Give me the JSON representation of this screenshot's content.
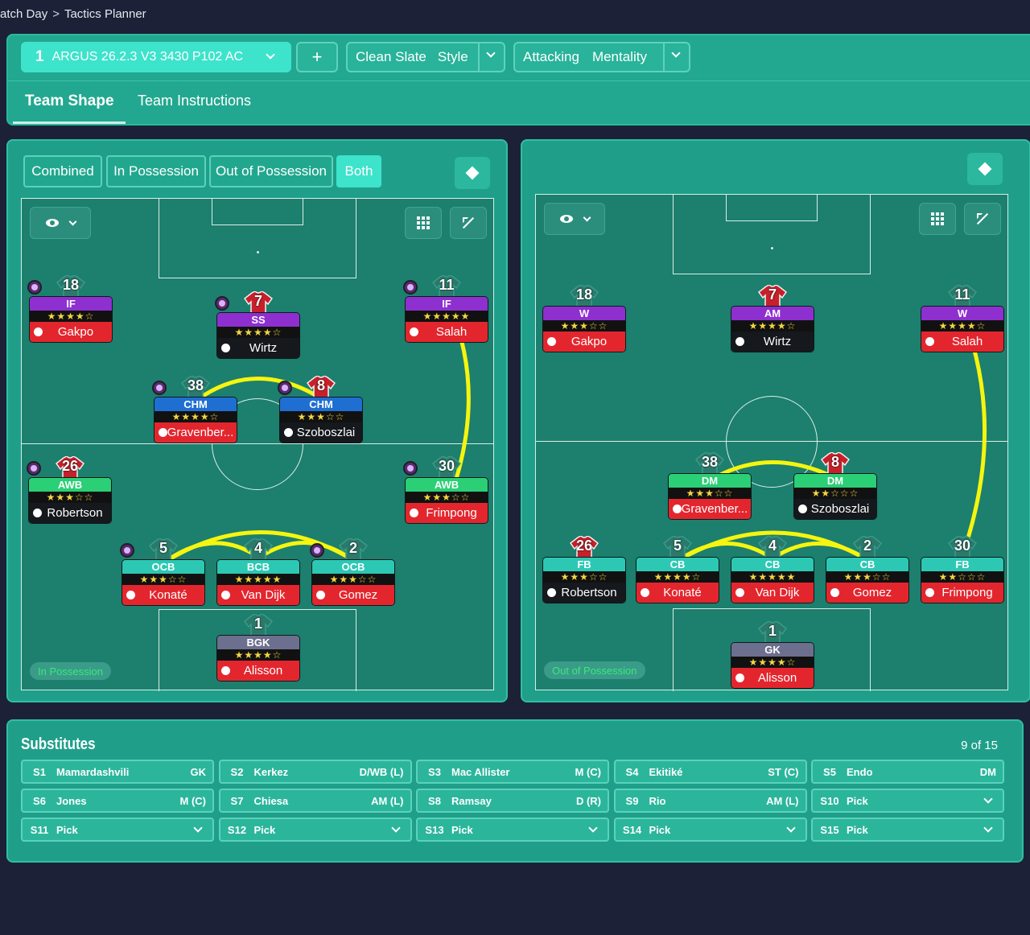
{
  "breadcrumb": {
    "part1": "atch Day",
    "part2": "Tactics Planner"
  },
  "tactic": {
    "slot": "1",
    "name": "ARGUS 26.2.3 V3 3430 P102 AC",
    "add": "+",
    "style_value": "Clean Slate",
    "style_label": "Style",
    "mentality_value": "Attacking",
    "mentality_label": "Mentality"
  },
  "tabs": {
    "team_shape": "Team Shape",
    "team_instructions": "Team Instructions"
  },
  "modes": {
    "combined": "Combined",
    "in_possession": "In Possession",
    "out_of_possession": "Out of Possession",
    "both": "Both"
  },
  "colors": {
    "accent": "#1f9f89",
    "selected": "#3ee3cc",
    "link_line": "#f5f50f"
  },
  "left_pitch": {
    "phase": "In Possession",
    "players": [
      {
        "num": "18",
        "role": "IF",
        "stars": "★★★★☆",
        "name": "Gakpo",
        "role_color": "purple",
        "name_color": "red",
        "pin": true
      },
      {
        "num": "7",
        "role": "SS",
        "stars": "★★★★☆",
        "name": "Wirtz",
        "role_color": "purple",
        "name_color": "black",
        "pin": true
      },
      {
        "num": "11",
        "role": "IF",
        "stars": "★★★★★",
        "name": "Salah",
        "role_color": "purple",
        "name_color": "red",
        "pin": true
      },
      {
        "num": "38",
        "role": "CHM",
        "stars": "★★★★☆",
        "name": "Gravenber...",
        "role_color": "blue",
        "name_color": "red",
        "pin": true
      },
      {
        "num": "8",
        "role": "CHM",
        "stars": "★★★☆☆",
        "name": "Szoboszlai",
        "role_color": "blue",
        "name_color": "black",
        "pin": true
      },
      {
        "num": "26",
        "role": "AWB",
        "stars": "★★★☆☆",
        "name": "Robertson",
        "role_color": "green",
        "name_color": "black",
        "pin": true
      },
      {
        "num": "30",
        "role": "AWB",
        "stars": "★★★☆☆",
        "name": "Frimpong",
        "role_color": "green",
        "name_color": "red",
        "pin": true
      },
      {
        "num": "5",
        "role": "OCB",
        "stars": "★★★☆☆",
        "name": "Konaté",
        "role_color": "teal",
        "name_color": "red",
        "pin": true
      },
      {
        "num": "4",
        "role": "BCB",
        "stars": "★★★★★",
        "name": "Van Dijk",
        "role_color": "teal",
        "name_color": "red",
        "pin": false
      },
      {
        "num": "2",
        "role": "OCB",
        "stars": "★★★☆☆",
        "name": "Gomez",
        "role_color": "teal",
        "name_color": "red",
        "pin": true
      },
      {
        "num": "1",
        "role": "BGK",
        "stars": "★★★★☆",
        "name": "Alisson",
        "role_color": "grey",
        "name_color": "red",
        "pin": false
      }
    ]
  },
  "right_pitch": {
    "phase": "Out of Possession",
    "players": [
      {
        "num": "18",
        "role": "W",
        "stars": "★★★☆☆",
        "name": "Gakpo",
        "role_color": "purple",
        "name_color": "red"
      },
      {
        "num": "7",
        "role": "AM",
        "stars": "★★★★☆",
        "name": "Wirtz",
        "role_color": "purple",
        "name_color": "black"
      },
      {
        "num": "11",
        "role": "W",
        "stars": "★★★★☆",
        "name": "Salah",
        "role_color": "purple",
        "name_color": "red"
      },
      {
        "num": "38",
        "role": "DM",
        "stars": "★★★☆☆",
        "name": "Gravenber...",
        "role_color": "green",
        "name_color": "red"
      },
      {
        "num": "8",
        "role": "DM",
        "stars": "★★☆☆☆",
        "name": "Szoboszlai",
        "role_color": "green",
        "name_color": "black"
      },
      {
        "num": "26",
        "role": "FB",
        "stars": "★★★☆☆",
        "name": "Robertson",
        "role_color": "teal",
        "name_color": "black"
      },
      {
        "num": "5",
        "role": "CB",
        "stars": "★★★★☆",
        "name": "Konaté",
        "role_color": "teal",
        "name_color": "red"
      },
      {
        "num": "4",
        "role": "CB",
        "stars": "★★★★★",
        "name": "Van Dijk",
        "role_color": "teal",
        "name_color": "red"
      },
      {
        "num": "2",
        "role": "CB",
        "stars": "★★★☆☆",
        "name": "Gomez",
        "role_color": "teal",
        "name_color": "red"
      },
      {
        "num": "30",
        "role": "FB",
        "stars": "★★☆☆☆",
        "name": "Frimpong",
        "role_color": "teal",
        "name_color": "red"
      },
      {
        "num": "1",
        "role": "GK",
        "stars": "★★★★☆",
        "name": "Alisson",
        "role_color": "grey",
        "name_color": "red"
      }
    ]
  },
  "substitutes": {
    "title": "Substitutes",
    "count": "9 of 15",
    "items": [
      {
        "id": "S1",
        "name": "Mamardashvili",
        "pos": "GK"
      },
      {
        "id": "S2",
        "name": "Kerkez",
        "pos": "D/WB (L)"
      },
      {
        "id": "S3",
        "name": "Mac Allister",
        "pos": "M (C)"
      },
      {
        "id": "S4",
        "name": "Ekitiké",
        "pos": "ST (C)"
      },
      {
        "id": "S5",
        "name": "Endo",
        "pos": "DM"
      },
      {
        "id": "S6",
        "name": "Jones",
        "pos": "M (C)"
      },
      {
        "id": "S7",
        "name": "Chiesa",
        "pos": "AM (L)"
      },
      {
        "id": "S8",
        "name": "Ramsay",
        "pos": "D (R)"
      },
      {
        "id": "S9",
        "name": "Rio",
        "pos": "AM (L)"
      },
      {
        "id": "S10",
        "name": "Pick",
        "pos": ""
      },
      {
        "id": "S11",
        "name": "Pick",
        "pos": ""
      },
      {
        "id": "S12",
        "name": "Pick",
        "pos": ""
      },
      {
        "id": "S13",
        "name": "Pick",
        "pos": ""
      },
      {
        "id": "S14",
        "name": "Pick",
        "pos": ""
      },
      {
        "id": "S15",
        "name": "Pick",
        "pos": ""
      }
    ]
  }
}
